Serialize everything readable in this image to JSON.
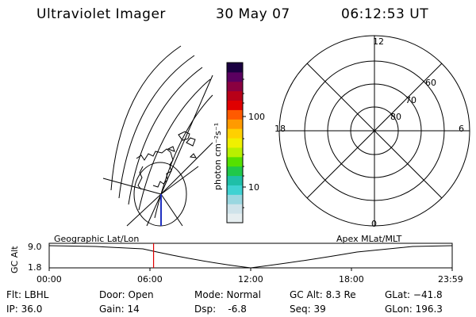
{
  "header": {
    "title": "Ultraviolet Imager",
    "date": "30 May 07",
    "time": "06:12:53 UT"
  },
  "colorbar": {
    "unit_label": "photon cm⁻²s⁻¹",
    "tick_100": "100",
    "tick_10": "10",
    "colors": [
      "#e6eef0",
      "#cfe3ea",
      "#9ad7e0",
      "#3fd2d2",
      "#1fbfa8",
      "#20c84a",
      "#55e000",
      "#b8f000",
      "#f0f000",
      "#ffd000",
      "#ff9a00",
      "#ff5a00",
      "#e00000",
      "#b80018",
      "#8a0040",
      "#5a0060",
      "#1a0040"
    ]
  },
  "polar_plot": {
    "label_top": "12",
    "label_bottom": "0",
    "label_left": "18",
    "label_right": "6",
    "ring_60": "60",
    "ring_70": "70",
    "ring_80": "80"
  },
  "timeline": {
    "left_caption": "Geographic Lat/Lon",
    "right_caption": "Apex MLat/MLT",
    "yaxis_title": "GC Alt",
    "y_top": "9.0",
    "y_bottom": "1.8",
    "ticks": [
      "00:00",
      "06:00",
      "12:00",
      "18:00",
      "23:59"
    ],
    "current_time_fraction": 0.259
  },
  "status": {
    "flt": "Flt: LBHL",
    "ip": "IP: 36.0",
    "door": "Door: Open",
    "gain": "Gain: 14",
    "mode": "Mode: Normal",
    "dsp": "Dsp:    -6.8",
    "gc_alt": "GC Alt: 8.3 Re",
    "seq": "Seq: 39",
    "glat": "GLat: −41.8",
    "glon": "GLon: 196.3"
  }
}
